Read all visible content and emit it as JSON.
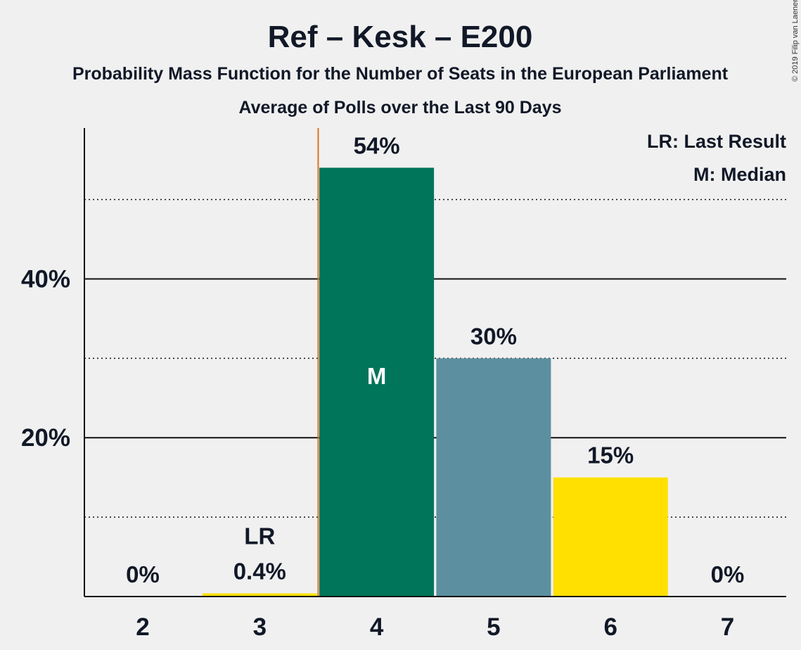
{
  "header": {
    "title": "Ref – Kesk – E200",
    "subtitle1": "Probability Mass Function for the Number of Seats in the European Parliament",
    "subtitle2": "Average of Polls over the Last 90 Days",
    "copyright": "© 2019 Filip van Laenen"
  },
  "legend": {
    "lr": "LR: Last Result",
    "median": "M: Median"
  },
  "chart_data": {
    "type": "bar",
    "title": "Ref – Kesk – E200",
    "xlabel": "",
    "ylabel": "",
    "categories": [
      "2",
      "3",
      "4",
      "5",
      "6",
      "7"
    ],
    "values": [
      0,
      0.4,
      54,
      30,
      15,
      0
    ],
    "value_labels": [
      "0%",
      "0.4%",
      "54%",
      "30%",
      "15%",
      "0%"
    ],
    "bar_colors": [
      "#00755a",
      "#ffe000",
      "#00755a",
      "#5c90a0",
      "#ffe000",
      "#00755a"
    ],
    "ylim": [
      0,
      59
    ],
    "yticks_major": [
      20,
      40
    ],
    "ytick_labels": [
      "20%",
      "40%"
    ],
    "yticks_minor": [
      10,
      30,
      50
    ],
    "last_result": {
      "category": "3",
      "label": "LR",
      "line_color": "#e07020"
    },
    "median": {
      "category": "4",
      "label": "M"
    },
    "legend_position": "top-right",
    "grid": true
  }
}
